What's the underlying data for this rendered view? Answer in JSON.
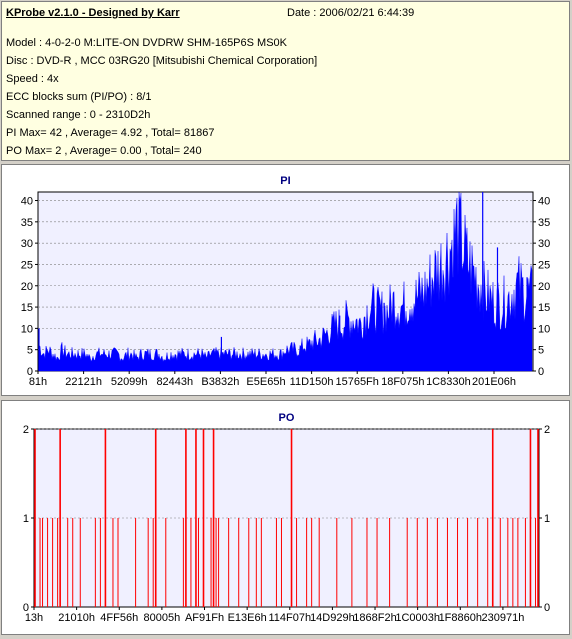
{
  "info": {
    "title": "KProbe v2.1.0 - Designed by Karr",
    "date": "Date : 2006/02/21 6:44:39",
    "lines": [
      "Model : 4-0-2-0 M:LITE-ON DVDRW SHM-165P6S MS0K",
      "Disc : DVD-R , MCC 03RG20   [Mitsubishi Chemical Corporation]",
      "Speed : 4x",
      "ECC blocks sum (PI/PO) : 8/1",
      "Scanned range : 0 - 2310D2h",
      "PI Max= 42 , Average= 4.92 , Total= 81867",
      "PO Max= 2 , Average= 0.00 , Total= 240"
    ]
  },
  "colors": {
    "pi": "#0000ff",
    "po": "#ff0000",
    "title": "#000080",
    "plot_bg": "#f0f0ff",
    "grid": "#808080"
  },
  "chart_data": [
    {
      "type": "area",
      "title": "PI",
      "ylim": [
        0,
        42
      ],
      "yticks": [
        0,
        5,
        10,
        15,
        20,
        25,
        30,
        35,
        40
      ],
      "xticks": [
        "81h",
        "22121h",
        "52099h",
        "82443h",
        "B3832h",
        "E5E65h",
        "11D150h",
        "15765Fh",
        "18F075h",
        "1C8330h",
        "201E06h"
      ],
      "grid": true,
      "series": [
        {
          "values": [
            6,
            4,
            5,
            4,
            3,
            5,
            4,
            4,
            4,
            4,
            4,
            3,
            4,
            4,
            4,
            4,
            4,
            4,
            3,
            4,
            4,
            3,
            4,
            4,
            4,
            4,
            4,
            3,
            4,
            4,
            4,
            4,
            4,
            4,
            4,
            4,
            3,
            4,
            4,
            4,
            4,
            4,
            4,
            4,
            4,
            4,
            4,
            4,
            4,
            4,
            4,
            4,
            4,
            5,
            5,
            5,
            5,
            6,
            6,
            7,
            7,
            8,
            9,
            10,
            11,
            11,
            12,
            12,
            12,
            11,
            13,
            15,
            15,
            14,
            14,
            14,
            16,
            16,
            15,
            16,
            17,
            17,
            18,
            19,
            21,
            23,
            24,
            26,
            28,
            30,
            34,
            30,
            26,
            24,
            22,
            20,
            18,
            17,
            16,
            16,
            16,
            17,
            19,
            20,
            19,
            18,
            18
          ],
          "peaks": [
            [
              0,
              10
            ],
            [
              37,
              8
            ],
            [
              61,
              13
            ],
            [
              70,
              16
            ],
            [
              84,
              22
            ],
            [
              90,
              42
            ],
            [
              93,
              29
            ],
            [
              99,
              22
            ]
          ]
        }
      ]
    },
    {
      "type": "bar",
      "title": "PO",
      "ylim": [
        0,
        2
      ],
      "yticks": [
        0,
        1,
        2
      ],
      "xticks": [
        "13h",
        "21010h",
        "4FF56h",
        "80005h",
        "AF91Fh",
        "E13E6h",
        "114F07h",
        "14D929h",
        "1868F2h",
        "1C0003h",
        "1F8860h",
        "230971h"
      ],
      "grid": true,
      "series": [
        {
          "ones": [
            1,
            1.5,
            2.5,
            3.5,
            4.5,
            6.5,
            7.5,
            9,
            12,
            13,
            15.5,
            16.5,
            20,
            22.5,
            23.5,
            26,
            29.5,
            30,
            31,
            32.5,
            35,
            36,
            36.5,
            38.5,
            40.5,
            42.5,
            44,
            45,
            48,
            49,
            52,
            54,
            55,
            56.5,
            60,
            63,
            66,
            68,
            70.5,
            74,
            76,
            78,
            80,
            82,
            84,
            86,
            88,
            90,
            92.5,
            94,
            95,
            96,
            97.5,
            99.5
          ],
          "twos": [
            0,
            5,
            14,
            24,
            30,
            32,
            33.5,
            35.5,
            51,
            91,
            98.5,
            100
          ]
        }
      ]
    }
  ]
}
